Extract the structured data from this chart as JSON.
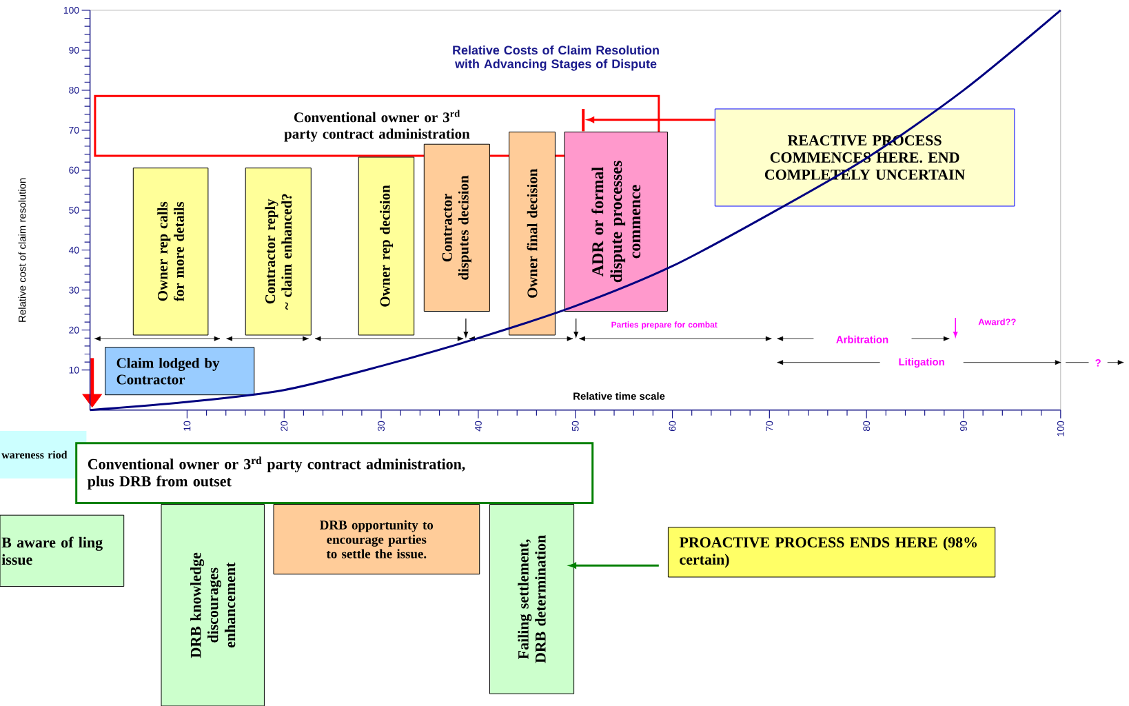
{
  "chart_data": {
    "type": "line",
    "title": "Relative Costs of Claim Resolution with Advancing Stages of Dispute",
    "xlabel": "Relative time scale",
    "ylabel": "Relative cost of claim resolution",
    "x": [
      0,
      10,
      20,
      30,
      40,
      50,
      60,
      70,
      80,
      90,
      100
    ],
    "series": [
      {
        "color": "#000080",
        "values": [
          0,
          2,
          5,
          11,
          18,
          26,
          36,
          49,
          63,
          80,
          100
        ]
      }
    ],
    "xlim": [
      0,
      100
    ],
    "ylim": [
      0,
      100
    ],
    "xticks": [
      10,
      20,
      30,
      40,
      50,
      60,
      70,
      80,
      90,
      100
    ],
    "yticks": [
      10,
      20,
      30,
      40,
      50,
      60,
      70,
      80,
      90,
      100
    ],
    "marker": "none",
    "line_style": "solid",
    "annotations": [
      "Conventional owner or 3$^{rd}$ party contract administration",
      "REACTIVE PROCESS COMMENCES HERE. END COMPLETELY UNCERTAIN",
      "Owner rep calls for more details",
      "Contractor reply ~ claim enhanced?",
      "Owner rep decision",
      "Contractor disputes decision",
      "Owner final decision",
      "ADR or formal dispute processes commence",
      "Parties prepare for combat",
      "Award??",
      "Arbitration",
      "Litigation",
      "?",
      "Claim lodged by Contractor",
      "wareness riod",
      "Conventional owner or 3$^{rd}$ party contract administration, plus DRB from outset",
      "B aware of ling issue",
      "DRB knowledge discourages enhancement",
      "DRB opportunity to encourage parties to settle the issue.",
      "Failing settlement, DRB determination",
      "PROACTIVE PROCESS ENDS HERE (98% certain)"
    ]
  }
}
